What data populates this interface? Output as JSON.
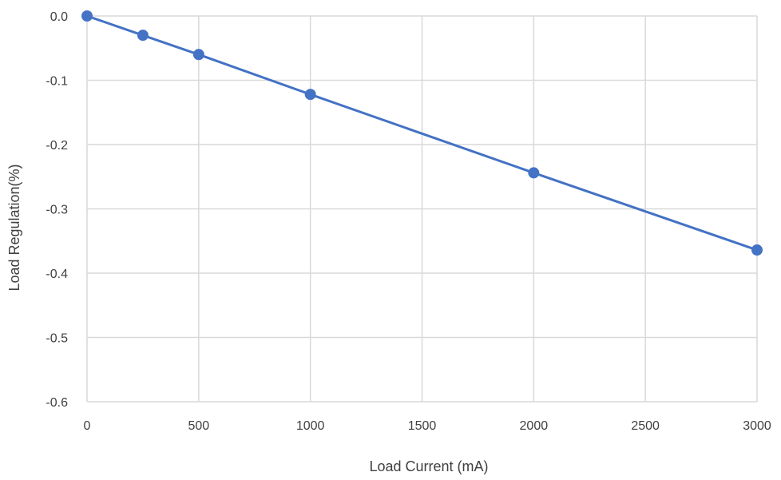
{
  "chart_data": {
    "type": "line",
    "xlabel": "Load Current (mA)",
    "ylabel": "Load Regulation(%)",
    "xlim": [
      0,
      3000
    ],
    "ylim": [
      -0.6,
      0.0
    ],
    "xticks": [
      0,
      500,
      1000,
      1500,
      2000,
      2500,
      3000
    ],
    "xtick_labels": [
      "0",
      "500",
      "1000",
      "1500",
      "2000",
      "2500",
      "3000"
    ],
    "yticks": [
      0.0,
      -0.1,
      -0.2,
      -0.3,
      -0.4,
      -0.5,
      -0.6
    ],
    "ytick_labels": [
      "0.0",
      "-0.1",
      "-0.2",
      "-0.3",
      "-0.4",
      "-0.5",
      "-0.6"
    ],
    "grid": true,
    "series": [
      {
        "x": [
          0,
          250,
          500,
          1000,
          2000,
          3000
        ],
        "y": [
          0.0,
          -0.03,
          -0.06,
          -0.122,
          -0.244,
          -0.364
        ],
        "color": "#4472C4",
        "markers": true
      }
    ]
  }
}
